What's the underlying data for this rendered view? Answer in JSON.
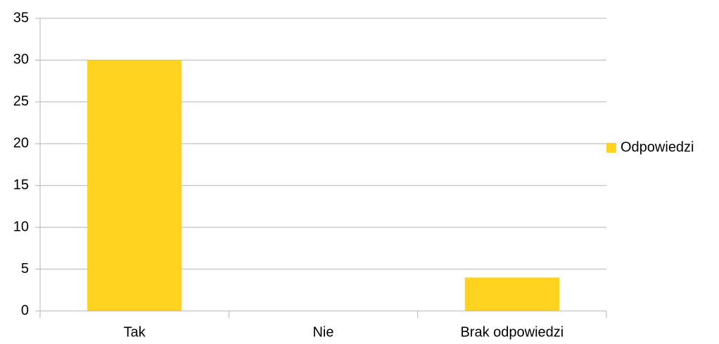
{
  "chart_data": {
    "type": "bar",
    "categories": [
      "Tak",
      "Nie",
      "Brak odpowiedzi"
    ],
    "series": [
      {
        "name": "Odpowiedzi",
        "color": "#ffd320",
        "values": [
          30,
          0,
          4
        ]
      }
    ],
    "ylim": [
      0,
      35
    ],
    "yticks": [
      0,
      5,
      10,
      15,
      20,
      25,
      30,
      35
    ],
    "grid": true,
    "legend": "right"
  }
}
